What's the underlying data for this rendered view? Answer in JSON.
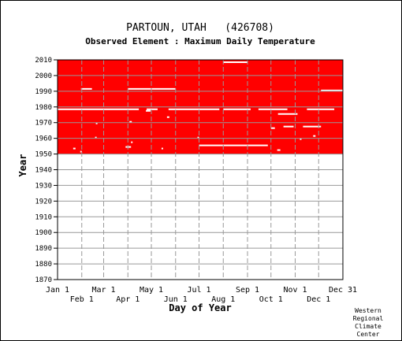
{
  "chart_data": {
    "type": "heatmap",
    "title": "PARTOUN, UTAH   (426708)",
    "subtitle": "Observed Element : Maximum Daily Temperature",
    "xlabel": "Day of Year",
    "ylabel": "Year",
    "xlim": [
      1,
      366
    ],
    "ylim": [
      1870,
      2010
    ],
    "y_ticks": [
      1870,
      1880,
      1890,
      1900,
      1910,
      1920,
      1930,
      1940,
      1950,
      1960,
      1970,
      1980,
      1990,
      2000,
      2010
    ],
    "x_ticks_upper": [
      {
        "label": "Jan 1",
        "day": 1
      },
      {
        "label": "Mar 1",
        "day": 60
      },
      {
        "label": "May 1",
        "day": 121
      },
      {
        "label": "Jul 1",
        "day": 182
      },
      {
        "label": "Sep 1",
        "day": 244
      },
      {
        "label": "Nov 1",
        "day": 305
      },
      {
        "label": "Dec 31",
        "day": 366
      }
    ],
    "x_ticks_lower": [
      {
        "label": "Feb 1",
        "day": 32
      },
      {
        "label": "Apr 1",
        "day": 91
      },
      {
        "label": "Jun 1",
        "day": 152
      },
      {
        "label": "Aug 1",
        "day": 213
      },
      {
        "label": "Oct 1",
        "day": 274
      },
      {
        "label": "Dec 1",
        "day": 335
      }
    ],
    "month_gridlines": [
      32,
      60,
      91,
      121,
      152,
      182,
      213,
      244,
      274,
      305,
      335
    ],
    "grid": true,
    "data_color": "#ff0000",
    "record_period": {
      "start_year": 1950,
      "end_year": 2010
    },
    "missing_segments": [
      {
        "year": 2008.5,
        "day_start": 213,
        "day_end": 244
      },
      {
        "year": 1991.5,
        "day_start": 31,
        "day_end": 45
      },
      {
        "year": 1991.5,
        "day_start": 91,
        "day_end": 152
      },
      {
        "year": 1990.5,
        "day_start": 338,
        "day_end": 366
      },
      {
        "year": 1978.5,
        "day_start": 1,
        "day_end": 105
      },
      {
        "year": 1978.5,
        "day_start": 115,
        "day_end": 129
      },
      {
        "year": 1978.5,
        "day_start": 143,
        "day_end": 208
      },
      {
        "year": 1978.5,
        "day_start": 213,
        "day_end": 248
      },
      {
        "year": 1978.5,
        "day_start": 258,
        "day_end": 295
      },
      {
        "year": 1978.5,
        "day_start": 320,
        "day_end": 355
      },
      {
        "year": 1977.5,
        "day_start": 114,
        "day_end": 120
      },
      {
        "year": 1975.5,
        "day_start": 283,
        "day_end": 308
      },
      {
        "year": 1973.5,
        "day_start": 141,
        "day_end": 144
      },
      {
        "year": 1970.5,
        "day_start": 93,
        "day_end": 96
      },
      {
        "year": 1969.5,
        "day_start": 50,
        "day_end": 52
      },
      {
        "year": 1967.5,
        "day_start": 290,
        "day_end": 303
      },
      {
        "year": 1966.5,
        "day_start": 274,
        "day_end": 279
      },
      {
        "year": 1967.5,
        "day_start": 315,
        "day_end": 338
      },
      {
        "year": 1961.5,
        "day_start": 328,
        "day_end": 331
      },
      {
        "year": 1960.5,
        "day_start": 49,
        "day_end": 51
      },
      {
        "year": 1960.5,
        "day_start": 180,
        "day_end": 182
      },
      {
        "year": 1959.5,
        "day_start": 311,
        "day_end": 313
      },
      {
        "year": 1957.5,
        "day_start": 95,
        "day_end": 97
      },
      {
        "year": 1955.5,
        "day_start": 182,
        "day_end": 270
      },
      {
        "year": 1954.5,
        "day_start": 88,
        "day_end": 95
      },
      {
        "year": 1953.5,
        "day_start": 21,
        "day_end": 24
      },
      {
        "year": 1953.5,
        "day_start": 134,
        "day_end": 136
      },
      {
        "year": 1952.5,
        "day_start": 282,
        "day_end": 286
      },
      {
        "year": 1951.5,
        "day_start": 30,
        "day_end": 32
      },
      {
        "year": 1949.5,
        "day_start": 95,
        "day_end": 182
      },
      {
        "year": 1949.5,
        "day_start": 208,
        "day_end": 366
      }
    ]
  },
  "credit": [
    "Western",
    "Regional",
    "Climate",
    "Center"
  ]
}
